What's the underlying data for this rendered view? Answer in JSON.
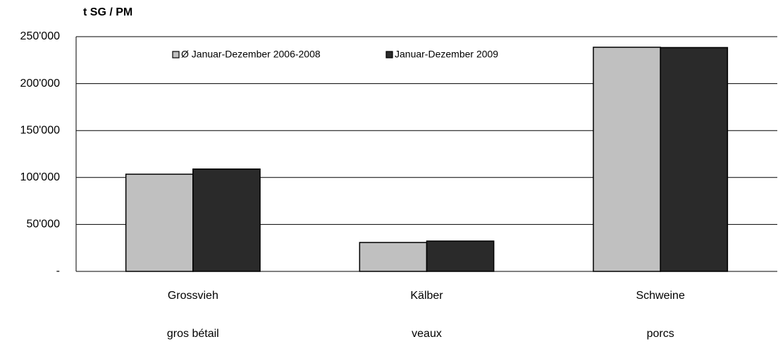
{
  "chart_data": {
    "type": "bar",
    "y_axis_title": "t SG / PM",
    "categories": [
      [
        "Grossvieh",
        "gros bétail"
      ],
      [
        "Kälber",
        "veaux"
      ],
      [
        "Schweine",
        "porcs"
      ]
    ],
    "series": [
      {
        "name": "Ø Januar-Dezember 2006-2008",
        "color": "#c0c0c0",
        "values": [
          103500,
          30800,
          238700
        ]
      },
      {
        "name": "Januar-Dezember 2009",
        "color": "#2a2a2a",
        "values": [
          109000,
          32300,
          238400
        ]
      }
    ],
    "ylim": [
      0,
      250000
    ],
    "yticks": [
      {
        "value": 0,
        "label": "-"
      },
      {
        "value": 50000,
        "label": "50'000"
      },
      {
        "value": 100000,
        "label": "100'000"
      },
      {
        "value": 150000,
        "label": "150'000"
      },
      {
        "value": 200000,
        "label": "200'000"
      },
      {
        "value": 250000,
        "label": "250'000"
      }
    ],
    "grid": true,
    "legend": "top"
  }
}
